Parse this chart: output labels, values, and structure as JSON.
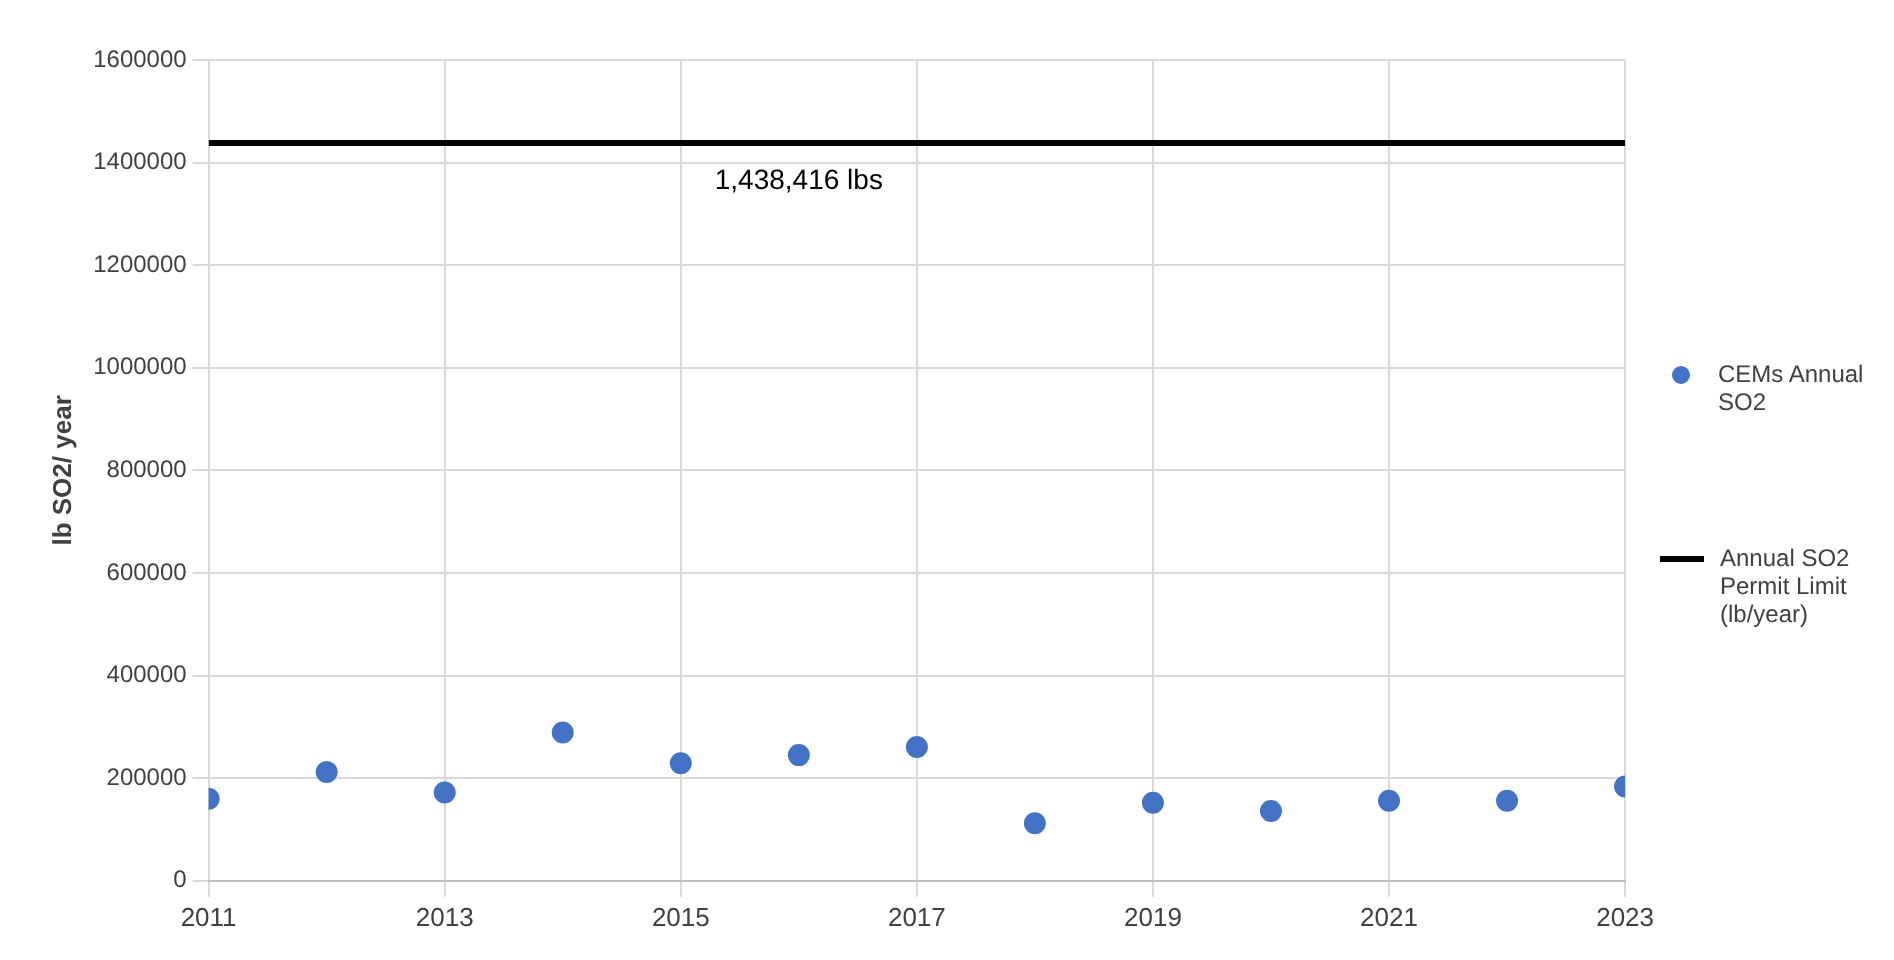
{
  "chart_data": {
    "type": "scatter",
    "ylabel": "lb SO2/ year",
    "xlim": [
      2011,
      2023
    ],
    "xticks": [
      2011,
      2013,
      2015,
      2017,
      2019,
      2021,
      2023
    ],
    "ylim": [
      0,
      1600000
    ],
    "yticks": [
      0,
      200000,
      400000,
      600000,
      800000,
      1000000,
      1200000,
      1400000,
      1600000
    ],
    "grid": true,
    "legend": "right",
    "series": [
      {
        "name": "CEMs Annual SO2",
        "color": "#4472c4",
        "marker": "circle",
        "x": [
          2011,
          2012,
          2013,
          2014,
          2015,
          2016,
          2017,
          2018,
          2019,
          2020,
          2021,
          2022,
          2023
        ],
        "values": [
          160000,
          212000,
          172000,
          289000,
          229000,
          245000,
          261000,
          112000,
          152000,
          136000,
          156000,
          156000,
          184000
        ]
      },
      {
        "name": "Annual SO2 Permit Limit (lb/year)",
        "color": "#000000",
        "type": "line",
        "x": [
          2011,
          2023
        ],
        "values": [
          1438416,
          1438416
        ]
      }
    ],
    "annotations": [
      {
        "text": "1,438,416 lbs",
        "x": 2016,
        "y": 1438416
      }
    ]
  }
}
